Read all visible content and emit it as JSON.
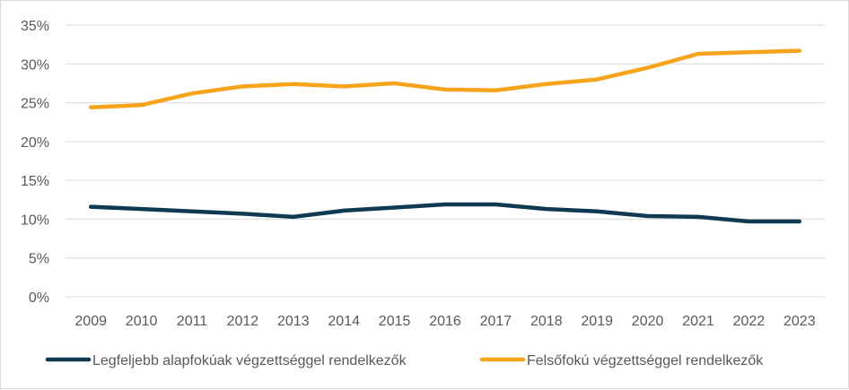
{
  "chart_data": {
    "type": "line",
    "categories": [
      "2009",
      "2010",
      "2011",
      "2012",
      "2013",
      "2014",
      "2015",
      "2016",
      "2017",
      "2018",
      "2019",
      "2020",
      "2021",
      "2022",
      "2023"
    ],
    "series": [
      {
        "name": "Legfeljebb alapfokúak végzettséggel rendelkezők",
        "color": "#0e3a53",
        "values": [
          11.6,
          11.3,
          11.0,
          10.7,
          10.3,
          11.1,
          11.5,
          11.9,
          11.9,
          11.3,
          11.0,
          10.4,
          10.3,
          9.7,
          9.7
        ]
      },
      {
        "name": "Felsőfokú végzettséggel rendelkezők",
        "color": "#f5a41c",
        "values": [
          24.4,
          24.7,
          26.2,
          27.1,
          27.4,
          27.1,
          27.5,
          26.7,
          26.6,
          27.4,
          28.0,
          29.5,
          31.3,
          31.5,
          31.7
        ]
      }
    ],
    "y_ticks": [
      "0%",
      "5%",
      "10%",
      "15%",
      "20%",
      "25%",
      "30%",
      "35%"
    ],
    "ylim": [
      0,
      35
    ],
    "grid": true,
    "legend_position": "bottom"
  }
}
